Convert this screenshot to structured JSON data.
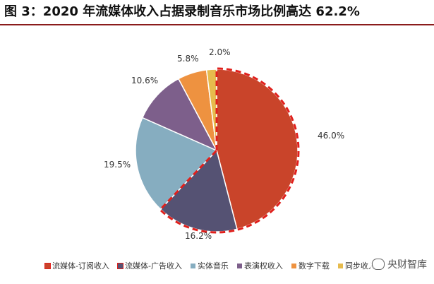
{
  "title": "图 3：2020 年流媒体收入占据录制音乐市场比例高达 62.2%",
  "watermark": "央财智库",
  "chart_data": {
    "type": "pie",
    "slices": [
      {
        "label": "流媒体-订阅收入",
        "value": 46.0,
        "display": "46.0%",
        "color": "#c9442a",
        "highlight": true
      },
      {
        "label": "流媒体-广告收入",
        "value": 16.2,
        "display": "16.2%",
        "color": "#555273",
        "highlight": true
      },
      {
        "label": "实体音乐",
        "value": 19.5,
        "display": "19.5%",
        "color": "#86adc0",
        "highlight": false
      },
      {
        "label": "表演权收入",
        "value": 10.6,
        "display": "10.6%",
        "color": "#7d5f8b",
        "highlight": false
      },
      {
        "label": "数字下载",
        "value": 5.8,
        "display": "5.8%",
        "color": "#ee9240",
        "highlight": false
      },
      {
        "label": "同步收入",
        "value": 2.0,
        "display": "2.0%",
        "color": "#e6bb4d",
        "highlight": false
      }
    ],
    "highlight_border_color": "#e0201c"
  }
}
